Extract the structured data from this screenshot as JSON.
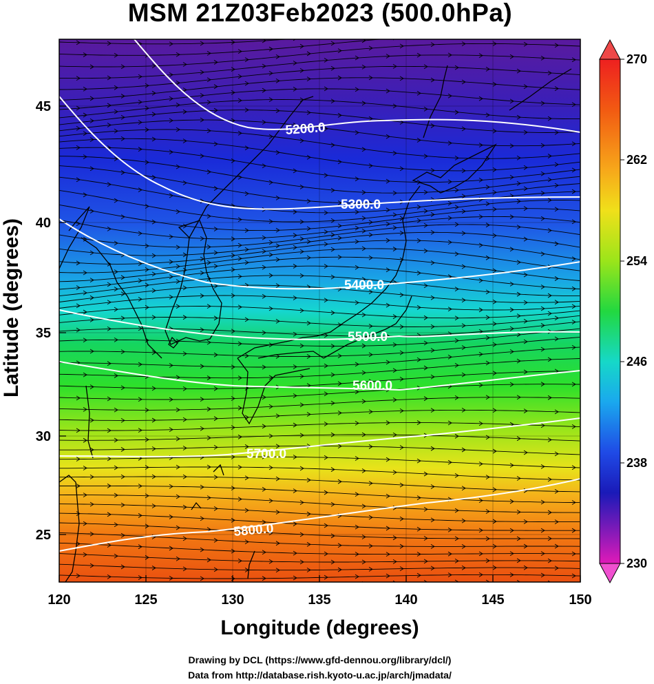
{
  "title": "MSM 21Z03Feb2023 (500.0hPa)",
  "map": {
    "xlabel": "Longitude (degrees)",
    "ylabel": "Latitude  (degrees)",
    "lon_range": [
      120,
      150
    ],
    "lat_range": [
      22.5,
      47.5
    ],
    "lon_ticks": [
      "120",
      "125",
      "130",
      "135",
      "140",
      "145",
      "150"
    ],
    "lat_ticks": [
      "25",
      "30",
      "35",
      "40",
      "45"
    ],
    "field": "temperature (K) shaded, geopotential height contours, wind streamlines",
    "contours": [
      {
        "label": "5200.0"
      },
      {
        "label": "5300.0"
      },
      {
        "label": "5400.0"
      },
      {
        "label": "5500.0"
      },
      {
        "label": "5600.0"
      },
      {
        "label": "5700.0"
      },
      {
        "label": "5800.0"
      }
    ]
  },
  "colorbar": {
    "ticks": [
      "270",
      "262",
      "254",
      "246",
      "238",
      "230"
    ],
    "range": [
      230,
      270
    ]
  },
  "credits": {
    "line1": "Drawing by DCL (https://www.gfd-dennou.org/library/dcl/)",
    "line2": "Data from http://database.rish.kyoto-u.ac.jp/arch/jmadata/"
  }
}
